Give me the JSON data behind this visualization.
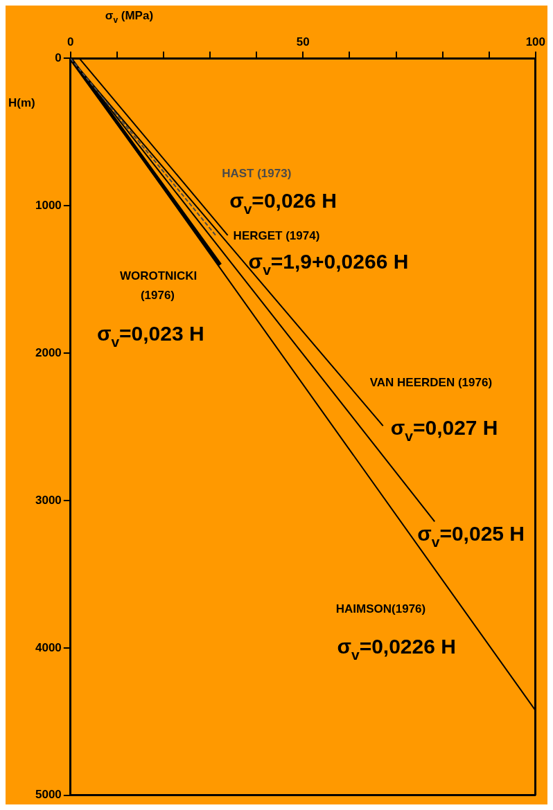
{
  "chart_data": {
    "type": "line",
    "xlabel": "σ$_{v}$ (MPa)",
    "ylabel": "H(m)",
    "xlim": [
      0,
      100
    ],
    "ylim": [
      5000,
      0
    ],
    "xticks": [
      0,
      {
        "value": 10,
        "label": null
      },
      {
        "value": 20,
        "label": null
      },
      {
        "value": 30,
        "label": null
      },
      {
        "value": 40,
        "label": null
      },
      50,
      {
        "value": 60,
        "label": null
      },
      {
        "value": 70,
        "label": null
      },
      {
        "value": 80,
        "label": null
      },
      {
        "value": 90,
        "label": null
      },
      100
    ],
    "yticks": [
      0,
      1000,
      2000,
      3000,
      4000,
      5000
    ],
    "grid": false,
    "legend": false,
    "marker": "none",
    "series": [
      {
        "name": "HAST (1973)",
        "color": "#4a4a4a",
        "line_style": "dashed",
        "x": [
          0,
          31.2
        ],
        "values": [
          0,
          1200
        ]
      },
      {
        "name": "HERGET (1974)",
        "color": "#000000",
        "line_style": "solid",
        "x": [
          1.9,
          33.8
        ],
        "values": [
          0,
          1200
        ]
      },
      {
        "name": "WOROTNICKI (1976)",
        "color": "#000000",
        "line_style": "solid",
        "x": [
          0,
          32.2
        ],
        "values": [
          0,
          1400
        ]
      },
      {
        "name": "VAN HEERDEN (1976)",
        "color": "#000000",
        "line_style": "solid",
        "x": [
          0,
          67.2
        ],
        "values": [
          0,
          2493
        ]
      },
      {
        "color": "#000000",
        "line_style": "solid",
        "x": [
          0,
          78.3
        ],
        "values": [
          0,
          3143
        ]
      },
      {
        "name": "HAIMSON(1976)",
        "color": "#000000",
        "line_style": "solid",
        "x": [
          0,
          100
        ],
        "values": [
          0,
          4425
        ]
      }
    ],
    "annotations": [
      {
        "text": "σ$_{v}$=0,026 H",
        "x": 31.2,
        "y": 1200
      },
      {
        "text": "σ$_{v}$=1,9+0,0266 H",
        "x": 33.8,
        "y": 1200
      },
      {
        "text": "σ$_{v}$=0,023 H",
        "x": 32.2,
        "y": 1400
      },
      {
        "text": "σ$_{v}$=0,027 H",
        "x": 67.2,
        "y": 2493
      },
      {
        "text": "σ$_{v}$=0,025 H",
        "x": 78.3,
        "y": 3143
      },
      {
        "text": "σ$_{v}$=0,0226 H",
        "x": 91.3,
        "y": 4039
      }
    ]
  }
}
